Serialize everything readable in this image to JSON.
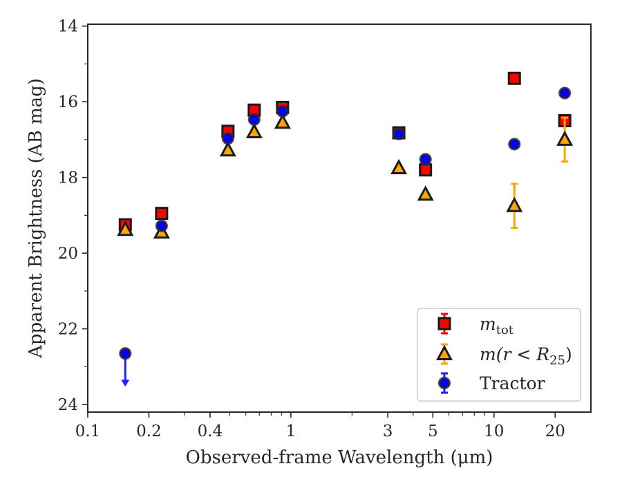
{
  "chart_data": {
    "type": "scatter",
    "xlabel": "Observed-frame Wavelength (μm)",
    "ylabel": "Apparent Brightness (AB mag)",
    "x_scale": "log",
    "xlim": [
      0.1,
      30
    ],
    "ylim": [
      24.2,
      13.95
    ],
    "y_inverted": true,
    "x_ticks": [
      {
        "value": 0.1,
        "label": "0.1"
      },
      {
        "value": 0.2,
        "label": "0.2"
      },
      {
        "value": 0.4,
        "label": "0.4"
      },
      {
        "value": 1,
        "label": "1"
      },
      {
        "value": 3,
        "label": "3"
      },
      {
        "value": 5,
        "label": "5"
      },
      {
        "value": 10,
        "label": "10"
      },
      {
        "value": 20,
        "label": "20"
      }
    ],
    "y_ticks": [
      {
        "value": 14,
        "label": "14"
      },
      {
        "value": 16,
        "label": "16"
      },
      {
        "value": 18,
        "label": "18"
      },
      {
        "value": 20,
        "label": "20"
      },
      {
        "value": 22,
        "label": "22"
      },
      {
        "value": 24,
        "label": "24"
      }
    ],
    "grid": false,
    "legend_position": "lower-right",
    "series": [
      {
        "name": "m_tot",
        "legend_main": "m",
        "legend_sub": "tot",
        "marker": "square",
        "color": "#ff0000",
        "errcolor": "#ff0000",
        "points": [
          {
            "x": 0.153,
            "y": 19.25,
            "err": 0.05
          },
          {
            "x": 0.231,
            "y": 18.95,
            "err": 0.05
          },
          {
            "x": 0.49,
            "y": 16.78,
            "err": 0.05
          },
          {
            "x": 0.66,
            "y": 16.22,
            "err": 0.05
          },
          {
            "x": 0.91,
            "y": 16.15,
            "err": 0.05
          },
          {
            "x": 3.4,
            "y": 16.82,
            "err": 0.05
          },
          {
            "x": 4.6,
            "y": 17.8,
            "err": 0.05
          },
          {
            "x": 12.6,
            "y": 15.38,
            "err": 0.05
          },
          {
            "x": 22.3,
            "y": 16.5,
            "err": 0.05
          }
        ]
      },
      {
        "name": "m(r<R_25)",
        "legend_main": "m(r < R",
        "legend_sub": "25",
        "legend_close": ")",
        "marker": "triangle",
        "color": "#ffa500",
        "errcolor": "#ffa500",
        "points": [
          {
            "x": 0.153,
            "y": 19.38,
            "err": 0.05
          },
          {
            "x": 0.231,
            "y": 19.45,
            "err": 0.05
          },
          {
            "x": 0.49,
            "y": 17.28,
            "err": 0.05
          },
          {
            "x": 0.66,
            "y": 16.8,
            "err": 0.05
          },
          {
            "x": 0.91,
            "y": 16.55,
            "err": 0.05
          },
          {
            "x": 3.4,
            "y": 17.75,
            "err": 0.05
          },
          {
            "x": 4.6,
            "y": 18.45,
            "err": 0.05
          },
          {
            "x": 12.6,
            "y": 18.75,
            "err": 0.58
          },
          {
            "x": 22.3,
            "y": 17.0,
            "err": 0.58
          }
        ]
      },
      {
        "name": "Tractor",
        "legend_main": "Tractor",
        "marker": "circle",
        "color": "#0000ff",
        "errcolor": "#2020ff",
        "points": [
          {
            "x": 0.153,
            "y": 22.65,
            "err": 0,
            "upper_limit": true
          },
          {
            "x": 0.231,
            "y": 19.28,
            "err": 0.05
          },
          {
            "x": 0.49,
            "y": 16.97,
            "err": 0.05
          },
          {
            "x": 0.66,
            "y": 16.47,
            "err": 0.05
          },
          {
            "x": 0.91,
            "y": 16.25,
            "err": 0.05
          },
          {
            "x": 3.4,
            "y": 16.85,
            "err": 0.05
          },
          {
            "x": 4.6,
            "y": 17.52,
            "err": 0.05
          },
          {
            "x": 12.6,
            "y": 17.12,
            "err": 0.05
          },
          {
            "x": 22.3,
            "y": 15.77,
            "err": 0.05
          }
        ]
      }
    ]
  }
}
